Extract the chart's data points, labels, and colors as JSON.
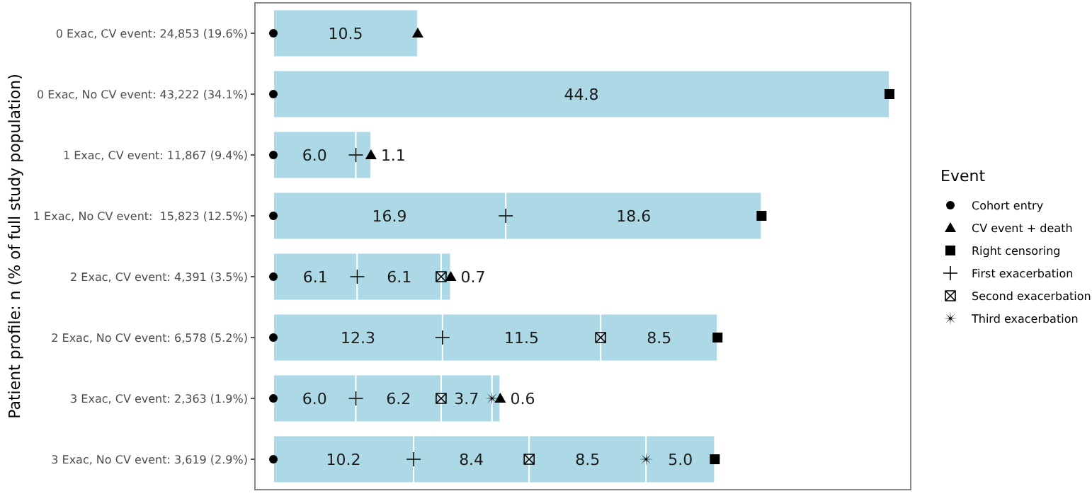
{
  "chart_data": {
    "type": "bar",
    "orientation": "horizontal",
    "stacked": true,
    "legend": "right",
    "legend_title": "Event",
    "grid": false,
    "ylabel": "Patient profile: n (% of full study population)",
    "categories": [
      "0 Exac, CV event: 24,853 (19.6%)",
      "0 Exac, No CV event: 43,222 (34.1%)",
      "1 Exac, CV event: 11,867 (9.4%)",
      "1 Exac, No CV event:  15,823 (12.5%)",
      "2 Exac, CV event: 4,391 (3.5%)",
      "2 Exac, No CV event: 6,578 (5.2%)",
      "3 Exac, CV event: 2,363 (1.9%)",
      "3 Exac, No CV event: 3,619 (2.9%)"
    ],
    "series": [
      {
        "color": "#add8e6",
        "values": [
          10.5,
          44.8,
          6.0,
          16.9,
          6.1,
          12.3,
          6.0,
          10.2
        ],
        "value_labels": [
          "10.5",
          "44.8",
          "6.0",
          "16.9",
          "6.1",
          "12.3",
          "6.0",
          "10.2"
        ]
      },
      {
        "color": "#add8e6",
        "values": [
          null,
          null,
          1.1,
          18.6,
          6.1,
          11.5,
          6.2,
          8.4
        ],
        "value_labels": [
          null,
          null,
          "1.1",
          "18.6",
          "6.1",
          "11.5",
          "6.2",
          "8.4"
        ]
      },
      {
        "color": "#add8e6",
        "values": [
          null,
          null,
          null,
          null,
          0.7,
          8.5,
          3.7,
          8.5
        ],
        "value_labels": [
          null,
          null,
          null,
          null,
          "0.7",
          "8.5",
          "3.7",
          "8.5"
        ]
      },
      {
        "color": "#add8e6",
        "values": [
          null,
          null,
          null,
          null,
          null,
          null,
          0.6,
          5.0
        ],
        "value_labels": [
          null,
          null,
          null,
          null,
          null,
          null,
          "0.6",
          "5.0"
        ]
      },
      {
        "type": "scatter",
        "name": "Cohort entry",
        "marker": "circle",
        "color": "#000000",
        "values": [
          0,
          0,
          0,
          0,
          0,
          0,
          0,
          0
        ]
      },
      {
        "type": "scatter",
        "name": "CV event + death",
        "marker": "triangle",
        "color": "#000000",
        "values": [
          10.5,
          null,
          7.1,
          null,
          12.9,
          null,
          16.5,
          null
        ]
      },
      {
        "type": "scatter",
        "name": "Right censoring",
        "marker": "square",
        "color": "#000000",
        "values": [
          null,
          44.8,
          null,
          35.5,
          null,
          32.3,
          null,
          32.1
        ]
      },
      {
        "type": "scatter",
        "name": "First exacerbation",
        "marker": "cross",
        "color": "#000000",
        "values": [
          null,
          null,
          6.0,
          16.9,
          6.1,
          12.3,
          6.0,
          10.2
        ]
      },
      {
        "type": "scatter",
        "name": "Second exacerbation",
        "color": "#000000",
        "values": [
          null,
          null,
          null,
          null,
          12.2,
          23.8,
          12.2,
          18.6
        ]
      },
      {
        "type": "scatter",
        "name": "Third exacerbation",
        "marker": "star",
        "color": "#000000",
        "values": [
          null,
          null,
          null,
          null,
          null,
          null,
          15.9,
          27.1
        ]
      }
    ]
  }
}
